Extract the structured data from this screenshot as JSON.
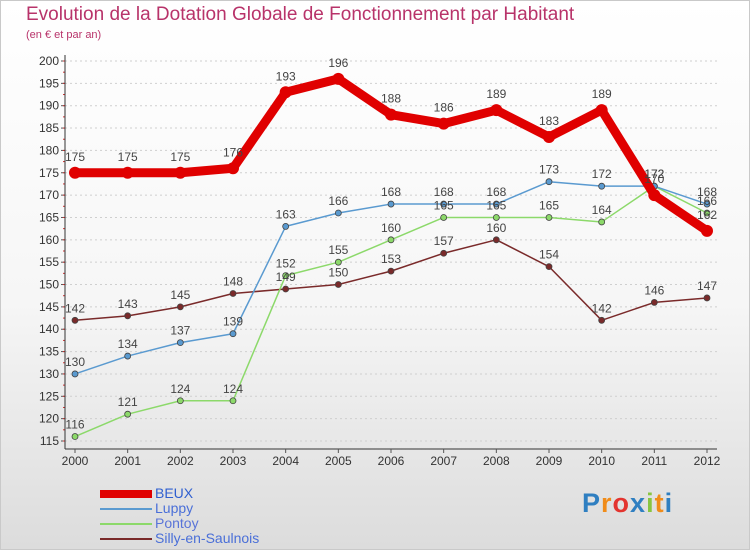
{
  "title": "Evolution de la Dotation Globale de Fonctionnement par Habitant",
  "subtitle": "(en € et par an)",
  "logo": {
    "letters": [
      {
        "char": "P",
        "color": "#2f7fc1"
      },
      {
        "char": "r",
        "color": "#f08c1a"
      },
      {
        "char": "o",
        "color": "#e3342f"
      },
      {
        "char": "x",
        "color": "#2f7fc1"
      },
      {
        "char": "i",
        "color": "#88c540"
      },
      {
        "char": "t",
        "color": "#f08c1a"
      },
      {
        "char": "i",
        "color": "#2f7fc1"
      }
    ]
  },
  "chart_data": {
    "type": "line",
    "title": "Evolution de la Dotation Globale de Fonctionnement par Habitant",
    "ylabel": "(en € et par an)",
    "xlabel": "",
    "x": [
      "2000",
      "2001",
      "2002",
      "2003",
      "2004",
      "2005",
      "2006",
      "2007",
      "2008",
      "2009",
      "2010",
      "2011",
      "2012"
    ],
    "ylim": [
      115,
      200
    ],
    "yticks": [
      115,
      120,
      125,
      130,
      135,
      140,
      145,
      150,
      155,
      160,
      165,
      170,
      175,
      180,
      185,
      190,
      195,
      200
    ],
    "grid": "horizontal dotted",
    "legend_position": "bottom-left",
    "series": [
      {
        "name": "BEUX",
        "color": "#e00000",
        "values": [
          175,
          175,
          175,
          176,
          193,
          196,
          188,
          186,
          189,
          183,
          189,
          170,
          162
        ]
      },
      {
        "name": "Luppy",
        "color": "#5a9ad0",
        "values": [
          130,
          134,
          137,
          139,
          163,
          166,
          168,
          168,
          168,
          173,
          172,
          172,
          168
        ]
      },
      {
        "name": "Pontoy",
        "color": "#8cd96a",
        "values": [
          116,
          121,
          124,
          124,
          152,
          155,
          160,
          165,
          165,
          165,
          164,
          172,
          166
        ]
      },
      {
        "name": "Silly-en-Saulnois",
        "color": "#7a2a2a",
        "values": [
          142,
          143,
          145,
          148,
          149,
          150,
          153,
          157,
          160,
          154,
          142,
          146,
          147
        ]
      }
    ]
  }
}
